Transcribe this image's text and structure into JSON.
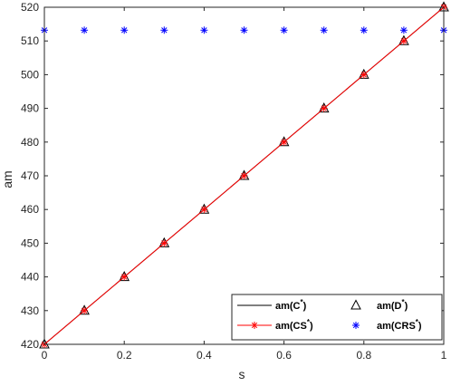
{
  "chart_data": {
    "type": "line",
    "xlabel": "s",
    "ylabel": "am",
    "xlim": [
      0,
      1
    ],
    "ylim": [
      420,
      520
    ],
    "xticks": [
      "0",
      "0.2",
      "0.4",
      "0.6",
      "0.8",
      "1"
    ],
    "yticks": [
      "420",
      "430",
      "440",
      "450",
      "460",
      "470",
      "480",
      "490",
      "500",
      "510",
      "520"
    ],
    "x": [
      0,
      0.1,
      0.2,
      0.3,
      0.4,
      0.5,
      0.6,
      0.7,
      0.8,
      0.9,
      1.0
    ],
    "series": [
      {
        "name": "am(C*)",
        "label_base": "am(C",
        "label_tail": ")",
        "color": "#000000",
        "marker": "none",
        "line": true,
        "values": [
          420,
          430,
          440,
          450,
          460,
          470,
          480,
          490,
          500,
          510,
          520
        ]
      },
      {
        "name": "am(D*)",
        "label_base": "am(D",
        "label_tail": ")",
        "color": "#000000",
        "marker": "triangle",
        "line": false,
        "values": [
          420,
          430,
          440,
          450,
          460,
          470,
          480,
          490,
          500,
          510,
          520
        ]
      },
      {
        "name": "am(CS*)",
        "label_base": "am(CS",
        "label_tail": ")",
        "color": "#ff0000",
        "marker": "star",
        "line": true,
        "values": [
          420,
          430,
          440,
          450,
          460,
          470,
          480,
          490,
          500,
          510,
          520
        ]
      },
      {
        "name": "am(CRS*)",
        "label_base": "am(CRS",
        "label_tail": ")",
        "color": "#0000ff",
        "marker": "star",
        "line": false,
        "values": [
          513.2,
          513.2,
          513.2,
          513.2,
          513.2,
          513.2,
          513.2,
          513.2,
          513.2,
          513.2,
          513.2
        ]
      }
    ],
    "legend_placement": "bottom-right",
    "grid": false
  }
}
